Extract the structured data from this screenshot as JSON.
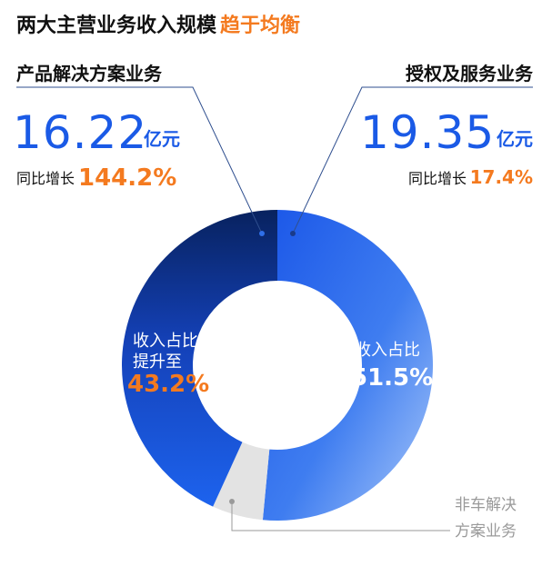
{
  "chart_data": {
    "type": "pie",
    "title": "两大主营业务收入规模",
    "title_highlight": "趋于均衡",
    "colors": {
      "primary": "#1a5ae6",
      "accent": "#f47a1f",
      "text": "#111111",
      "muted": "#9a9a9a",
      "gray_slice": "#e3e3e3"
    },
    "segments": [
      {
        "label": "授权及服务业务",
        "amount": "19.35",
        "unit": "亿元",
        "yoy_label": "同比增长",
        "yoy_value": "17.4%",
        "share_label": "收入占比",
        "share_value": "51.5%",
        "value": 51.5
      },
      {
        "label": "非车解决方案业务",
        "label_line1": "非车解决",
        "label_line2": "方案业务",
        "value": 5.3
      },
      {
        "label": "产品解决方案业务",
        "amount": "16.22",
        "unit": "亿元",
        "yoy_label": "同比增长",
        "yoy_value": "144.2%",
        "share_label_line1": "收入占比",
        "share_label_line2": "提升至",
        "share_value": "43.2%",
        "value": 43.2
      }
    ]
  }
}
